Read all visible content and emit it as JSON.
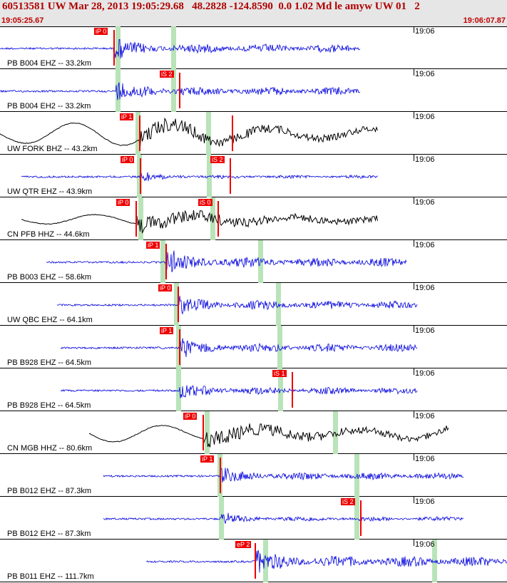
{
  "header": {
    "title": "60513581 UW Mar 28, 2013 19:05:29.68   48.2828 -124.8590  0.0 1.02 Md le amyw UW 01   2",
    "start_time": "19:05:25.67",
    "end_time": "19:06:07.87"
  },
  "colors": {
    "blue": "#0000dd",
    "black": "#000000",
    "pick": "#ee0000",
    "green": "#b9e3b9"
  },
  "traces": [
    {
      "label": "PB B004 EHZ -- 33.2km",
      "time": "19:06",
      "color": "blue",
      "kind": "noise",
      "start": 0,
      "end": 505,
      "onset": 160,
      "amp": 7,
      "bias": 0.15,
      "picks": [
        {
          "label": "iP 0",
          "x": 160
        }
      ],
      "green": [
        165,
        243
      ]
    },
    {
      "label": "PB B004 EH2 -- 33.2km",
      "time": "19:06",
      "color": "blue",
      "kind": "noise",
      "start": 0,
      "end": 505,
      "onset": 163,
      "amp": 7,
      "bias": 0.1,
      "picks": [
        {
          "label": "iS 2",
          "x": 252
        }
      ],
      "green": [
        165,
        243
      ]
    },
    {
      "label": "UW FORK BHZ -- 43.2km",
      "time": "19:06",
      "color": "black",
      "kind": "wave",
      "start": 0,
      "end": 530,
      "onset": 196,
      "amp": 16,
      "bias": 0,
      "picks": [
        {
          "label": "iP 1",
          "x": 196
        },
        {
          "label": "",
          "x": 326
        }
      ],
      "green": [
        193,
        292
      ]
    },
    {
      "label": "UW QTR EHZ -- 43.9km",
      "time": "19:06",
      "color": "blue",
      "kind": "noise",
      "start": 30,
      "end": 530,
      "onset": 197,
      "amp": 3,
      "bias": 0,
      "picks": [
        {
          "label": "iP 0",
          "x": 197
        },
        {
          "label": "iS 2",
          "x": 323
        }
      ],
      "green": [
        195,
        293
      ]
    },
    {
      "label": "CN PFB HHZ -- 44.6km",
      "time": "19:06",
      "color": "black",
      "kind": "wave",
      "start": 30,
      "end": 530,
      "onset": 191,
      "amp": 7,
      "bias": 0,
      "picks": [
        {
          "label": "iP 0",
          "x": 191
        },
        {
          "label": "iS 0",
          "x": 306
        }
      ],
      "green": [
        197,
        298
      ]
    },
    {
      "label": "PB B003 EHZ -- 58.6km",
      "time": "19:06",
      "color": "blue",
      "kind": "noise",
      "start": 65,
      "end": 570,
      "onset": 233,
      "amp": 8,
      "bias": 0,
      "picks": [
        {
          "label": "iP 1",
          "x": 233
        }
      ],
      "green": [
        228,
        365
      ]
    },
    {
      "label": "UW QBC EHZ -- 64.1km",
      "time": "19:06",
      "color": "blue",
      "kind": "noise",
      "start": 80,
      "end": 585,
      "onset": 250,
      "amp": 7,
      "bias": 0,
      "picks": [
        {
          "label": "iP 0",
          "x": 250
        }
      ],
      "green": [
        247,
        390
      ]
    },
    {
      "label": "PB B928 EHZ -- 64.5km",
      "time": "19:06",
      "color": "blue",
      "kind": "noise",
      "start": 85,
      "end": 585,
      "onset": 252,
      "amp": 7,
      "bias": 0,
      "picks": [
        {
          "label": "iP 1",
          "x": 252
        }
      ],
      "green": [
        250,
        392
      ]
    },
    {
      "label": "PB B928 EH2 -- 64.5km",
      "time": "19:06",
      "color": "blue",
      "kind": "noise",
      "start": 85,
      "end": 585,
      "onset": 252,
      "amp": 6,
      "bias": 0,
      "picks": [
        {
          "label": "iS 1",
          "x": 410
        }
      ],
      "green": [
        250,
        393
      ]
    },
    {
      "label": "CN MGB HHZ -- 80.6km",
      "time": "19:06",
      "color": "black",
      "kind": "wave",
      "start": 125,
      "end": 630,
      "onset": 285,
      "amp": 12,
      "bias": 0,
      "picks": [
        {
          "label": "iP 0",
          "x": 285
        }
      ],
      "green": [
        290,
        470
      ]
    },
    {
      "label": "PB B012 EHZ -- 87.3km",
      "time": "19:06",
      "color": "blue",
      "kind": "noise",
      "start": 145,
      "end": 650,
      "onset": 309,
      "amp": 6,
      "bias": 0,
      "picks": [
        {
          "label": "iP 1",
          "x": 309
        }
      ],
      "green": [
        308,
        500
      ]
    },
    {
      "label": "PB B012 EH2 -- 87.3km",
      "time": "19:06",
      "color": "blue",
      "kind": "noise",
      "start": 145,
      "end": 650,
      "onset": 309,
      "amp": 4,
      "bias": 0,
      "picks": [
        {
          "label": "iS 2",
          "x": 506
        }
      ],
      "green": [
        310,
        500
      ]
    },
    {
      "label": "PB B011 EHZ -- 111.7km",
      "time": "19:06",
      "color": "blue",
      "kind": "noise",
      "start": 205,
      "end": 711,
      "onset": 360,
      "amp": 9,
      "bias": 0,
      "picks": [
        {
          "label": "eP 2",
          "x": 358
        }
      ],
      "green": [
        372,
        609
      ]
    }
  ]
}
